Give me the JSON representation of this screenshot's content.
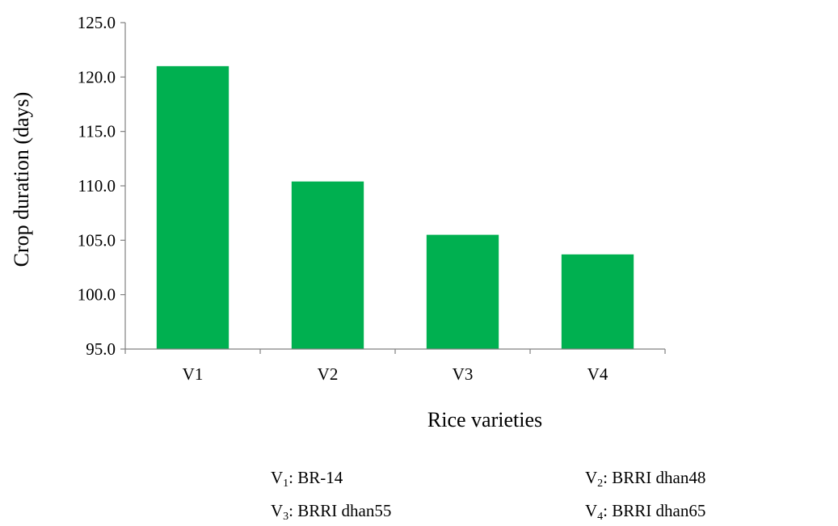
{
  "chart_data": {
    "type": "bar",
    "categories": [
      "V1",
      "V2",
      "V3",
      "V4"
    ],
    "values": [
      121.0,
      110.4,
      105.5,
      103.7
    ],
    "xlabel": "Rice varieties",
    "ylabel": "Crop duration (days)",
    "ylim": [
      95.0,
      125.0
    ],
    "yticks": [
      "95.0",
      "100.0",
      "105.0",
      "110.0",
      "115.0",
      "120.0",
      "125.0"
    ],
    "grid": false,
    "bar_color": "#00B050"
  },
  "notes": [
    {
      "letter": "V",
      "index": "1",
      "text": ": BR-14"
    },
    {
      "letter": "V",
      "index": "2",
      "text": ": BRRI dhan48"
    },
    {
      "letter": "V",
      "index": "3",
      "text": ": BRRI dhan55"
    },
    {
      "letter": "V",
      "index": "4",
      "text": ": BRRI dhan65"
    }
  ]
}
